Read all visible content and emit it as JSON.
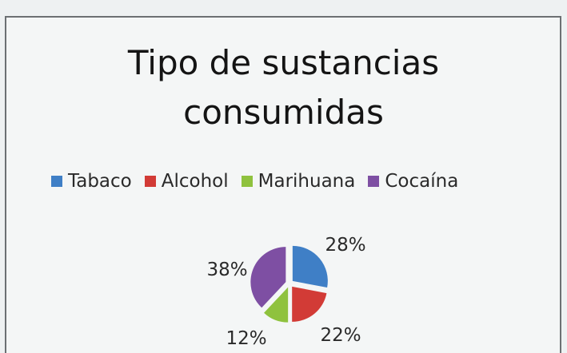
{
  "chart_data": {
    "type": "pie",
    "title_lines": [
      "Tipo de sustancias",
      "consumidas"
    ],
    "legend_position": "top",
    "slices": [
      {
        "name": "Tabaco",
        "value": 28,
        "label": "28%",
        "color": "#3f7fc6"
      },
      {
        "name": "Alcohol",
        "value": 22,
        "label": "22%",
        "color": "#d23b36"
      },
      {
        "name": "Marihuana",
        "value": 12,
        "label": "12%",
        "color": "#8fc23e"
      },
      {
        "name": "Cocaína",
        "value": 38,
        "label": "38%",
        "color": "#7e4fa3"
      }
    ]
  }
}
